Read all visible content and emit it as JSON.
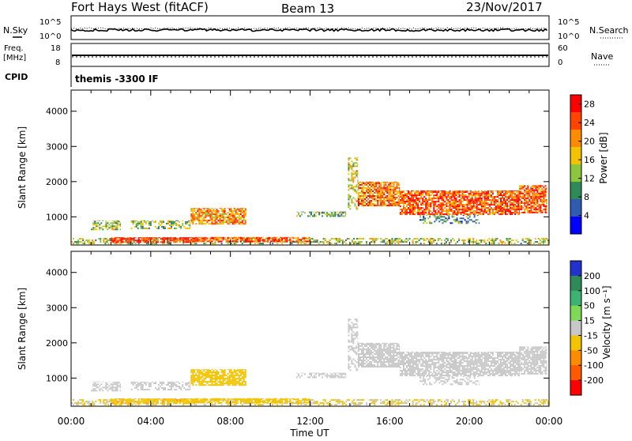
{
  "header": {
    "station": "Fort Hays West (fitACF)",
    "beam": "Beam 13",
    "date": "23/Nov/2017"
  },
  "noise_panel": {
    "left_label": "N.Sky",
    "right_label": "N.Search",
    "left_ticks": [
      "10^5",
      "10^0"
    ],
    "right_ticks": [
      "10^5",
      "10^0"
    ]
  },
  "freq_panel": {
    "left_label_1": "Freq.",
    "left_label_2": "[MHz]",
    "left_ticks": [
      "18",
      "8"
    ],
    "right_label": "Nave",
    "right_ticks": [
      "60",
      "0"
    ]
  },
  "cpid_panel": {
    "label": "CPID",
    "program": "themis -3300 IF"
  },
  "chart_data": [
    {
      "type": "heatmap",
      "name": "power",
      "ylabel": "Slant Range [km]",
      "ylim": [
        200,
        4600
      ],
      "yticks": [
        "1000",
        "2000",
        "3000",
        "4000"
      ],
      "yvalues": [
        1000,
        2000,
        3000,
        4000
      ],
      "xlim": [
        0,
        24
      ],
      "colorbar": {
        "label": "Power [dB]",
        "ticks": [
          "4",
          "8",
          "12",
          "16",
          "20",
          "24",
          "28"
        ],
        "values": [
          4,
          8,
          12,
          16,
          20,
          24,
          28
        ],
        "range": [
          0,
          30
        ],
        "colors": [
          "#0000ff",
          "#2f5bb0",
          "#2e8b57",
          "#8cc63f",
          "#f2c300",
          "#ff8c00",
          "#ff4500",
          "#ff0000"
        ]
      }
    },
    {
      "type": "heatmap",
      "name": "velocity",
      "ylabel": "Slant Range [km]",
      "ylim": [
        200,
        4600
      ],
      "yticks": [
        "1000",
        "2000",
        "3000",
        "4000"
      ],
      "yvalues": [
        1000,
        2000,
        3000,
        4000
      ],
      "xlim": [
        0,
        24
      ],
      "colorbar": {
        "label": "Velocity [m s⁻¹]",
        "ticks": [
          "200",
          "100",
          "50",
          "15",
          "-15",
          "-50",
          "-100",
          "-200"
        ],
        "colors": [
          "#2233cc",
          "#2e8b57",
          "#3cb371",
          "#7ed957",
          "#c8c8c8",
          "#f2c300",
          "#ff8c00",
          "#ff5a00",
          "#ff0000"
        ]
      }
    }
  ],
  "xaxis": {
    "ticks": [
      "00:00",
      "04:00",
      "08:00",
      "12:00",
      "16:00",
      "20:00",
      "00:00"
    ],
    "values": [
      0,
      4,
      8,
      12,
      16,
      20,
      24
    ],
    "label": "Time UT"
  },
  "scatter_regions": [
    {
      "t0": 0.0,
      "t1": 24.0,
      "r0": 220,
      "r1": 400,
      "density": 0.45,
      "power": 14,
      "vel": -20
    },
    {
      "t0": 2.0,
      "t1": 6.0,
      "r0": 260,
      "r1": 420,
      "density": 0.8,
      "power": 26,
      "vel": -40
    },
    {
      "t0": 6.0,
      "t1": 12.0,
      "r0": 280,
      "r1": 430,
      "density": 0.7,
      "power": 24,
      "vel": -35
    },
    {
      "t0": 1.0,
      "t1": 2.5,
      "r0": 620,
      "r1": 900,
      "density": 0.5,
      "power": 13,
      "vel": 0
    },
    {
      "t0": 3.0,
      "t1": 6.0,
      "r0": 650,
      "r1": 900,
      "density": 0.55,
      "power": 13,
      "vel": 0
    },
    {
      "t0": 6.0,
      "t1": 8.8,
      "r0": 780,
      "r1": 1250,
      "density": 0.75,
      "power": 20,
      "vel": -30
    },
    {
      "t0": 11.3,
      "t1": 13.8,
      "r0": 1000,
      "r1": 1150,
      "density": 0.55,
      "power": 11,
      "vel": 0
    },
    {
      "t0": 13.9,
      "t1": 14.4,
      "r0": 1200,
      "r1": 2700,
      "density": 0.45,
      "power": 16,
      "vel": 0
    },
    {
      "t0": 14.4,
      "t1": 16.5,
      "r0": 1300,
      "r1": 2000,
      "density": 0.8,
      "power": 22,
      "vel": 0
    },
    {
      "t0": 16.5,
      "t1": 22.5,
      "r0": 1050,
      "r1": 1750,
      "density": 0.8,
      "power": 24,
      "vel": 0
    },
    {
      "t0": 22.5,
      "t1": 23.9,
      "r0": 1100,
      "r1": 1900,
      "density": 0.75,
      "power": 23,
      "vel": 0
    },
    {
      "t0": 17.5,
      "t1": 20.5,
      "r0": 800,
      "r1": 1050,
      "density": 0.35,
      "power": 9,
      "vel": 0
    }
  ]
}
